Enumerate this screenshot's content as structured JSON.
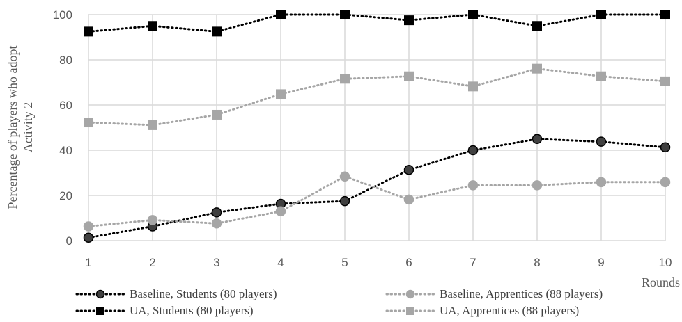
{
  "chart_data": {
    "type": "line",
    "title": "",
    "xlabel": "Rounds",
    "ylabel": "Percentage of players who adopt Activity 2",
    "ylabel_lines": [
      "Percentage of players who adopt",
      "Activity 2"
    ],
    "x": [
      1,
      2,
      3,
      4,
      5,
      6,
      7,
      8,
      9,
      10
    ],
    "x_tick_labels": [
      "1",
      "2",
      "3",
      "4",
      "5",
      "6",
      "7",
      "8",
      "9",
      "10"
    ],
    "ylim": [
      0,
      100
    ],
    "y_ticks": [
      0,
      20,
      40,
      60,
      80,
      100
    ],
    "y_tick_labels": [
      "0",
      "20",
      "40",
      "60",
      "80",
      "100"
    ],
    "grid": true,
    "legend_position": "bottom",
    "series": [
      {
        "name": "Baseline, Students (80 players)",
        "marker": "circle",
        "color": "#000000",
        "marker_fill": "#404040",
        "values": [
          1.3,
          6.3,
          12.5,
          16.3,
          17.5,
          31.3,
          40.0,
          45.0,
          43.8,
          41.3
        ]
      },
      {
        "name": "Baseline, Apprentices (88 players)",
        "marker": "circle",
        "color": "#a6a6a6",
        "marker_fill": "#a6a6a6",
        "values": [
          6.3,
          9.1,
          7.6,
          13.0,
          28.4,
          18.2,
          24.5,
          24.5,
          25.9,
          25.9
        ]
      },
      {
        "name": "UA, Students (80 players)",
        "marker": "square",
        "color": "#000000",
        "marker_fill": "#000000",
        "values": [
          92.5,
          95.0,
          92.5,
          100,
          100,
          97.5,
          100,
          95.0,
          100,
          100
        ]
      },
      {
        "name": "UA, Apprentices (88 players)",
        "marker": "square",
        "color": "#a6a6a6",
        "marker_fill": "#a6a6a6",
        "values": [
          52.3,
          51.1,
          55.7,
          64.8,
          71.6,
          72.7,
          68.2,
          76.1,
          72.7,
          70.5
        ]
      }
    ]
  }
}
